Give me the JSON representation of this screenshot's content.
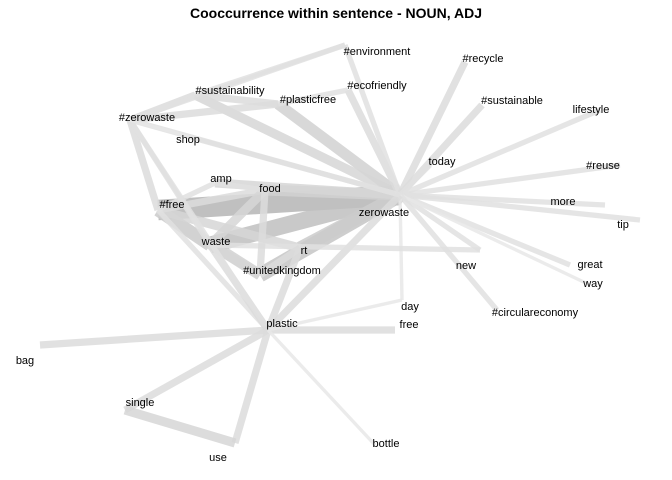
{
  "title": "Cooccurrence within sentence - NOUN, ADJ",
  "nodes": [
    {
      "id": "zerowaste",
      "label": "zerowaste"
    },
    {
      "id": "#environment",
      "label": "#environment"
    },
    {
      "id": "#recycle",
      "label": "#recycle"
    },
    {
      "id": "#sustainability",
      "label": "#sustainability"
    },
    {
      "id": "#ecofriendly",
      "label": "#ecofriendly"
    },
    {
      "id": "#plasticfree",
      "label": "#plasticfree"
    },
    {
      "id": "#sustainable",
      "label": "#sustainable"
    },
    {
      "id": "lifestyle",
      "label": "lifestyle"
    },
    {
      "id": "#zerowaste",
      "label": "#zerowaste"
    },
    {
      "id": "shop",
      "label": "shop"
    },
    {
      "id": "today",
      "label": "today"
    },
    {
      "id": "#reuse",
      "label": "#reuse"
    },
    {
      "id": "amp",
      "label": "amp"
    },
    {
      "id": "food",
      "label": "food"
    },
    {
      "id": "#free",
      "label": "#free"
    },
    {
      "id": "more",
      "label": "more"
    },
    {
      "id": "tip",
      "label": "tip"
    },
    {
      "id": "waste",
      "label": "waste"
    },
    {
      "id": "rt",
      "label": "rt"
    },
    {
      "id": "#unitedkingdom",
      "label": "#unitedkingdom"
    },
    {
      "id": "new",
      "label": "new"
    },
    {
      "id": "great",
      "label": "great"
    },
    {
      "id": "way",
      "label": "way"
    },
    {
      "id": "day",
      "label": "day"
    },
    {
      "id": "#circulareconomy",
      "label": "#circulareconomy"
    },
    {
      "id": "plastic",
      "label": "plastic"
    },
    {
      "id": "free",
      "label": "free"
    },
    {
      "id": "bag",
      "label": "bag"
    },
    {
      "id": "single",
      "label": "single"
    },
    {
      "id": "bottle",
      "label": "bottle"
    },
    {
      "id": "use",
      "label": "use"
    }
  ],
  "edges": [
    {
      "source": "zerowaste",
      "target": "#free",
      "weight": 10
    },
    {
      "source": "zerowaste",
      "target": "waste",
      "weight": 8
    },
    {
      "source": "zerowaste",
      "target": "#unitedkingdom",
      "weight": 7
    },
    {
      "source": "zerowaste",
      "target": "rt",
      "weight": 6
    },
    {
      "source": "zerowaste",
      "target": "food",
      "weight": 5
    },
    {
      "source": "zerowaste",
      "target": "amp",
      "weight": 4
    },
    {
      "source": "zerowaste",
      "target": "#plasticfree",
      "weight": 5
    },
    {
      "source": "zerowaste",
      "target": "#sustainability",
      "weight": 4
    },
    {
      "source": "zerowaste",
      "target": "#ecofriendly",
      "weight": 3
    },
    {
      "source": "zerowaste",
      "target": "#environment",
      "weight": 2
    },
    {
      "source": "zerowaste",
      "target": "#recycle",
      "weight": 3
    },
    {
      "source": "zerowaste",
      "target": "#sustainable",
      "weight": 3
    },
    {
      "source": "zerowaste",
      "target": "lifestyle",
      "weight": 2
    },
    {
      "source": "zerowaste",
      "target": "#reuse",
      "weight": 2
    },
    {
      "source": "zerowaste",
      "target": "more",
      "weight": 2
    },
    {
      "source": "zerowaste",
      "target": "tip",
      "weight": 2
    },
    {
      "source": "zerowaste",
      "target": "today",
      "weight": 2
    },
    {
      "source": "zerowaste",
      "target": "new",
      "weight": 2
    },
    {
      "source": "zerowaste",
      "target": "great",
      "weight": 2
    },
    {
      "source": "zerowaste",
      "target": "way",
      "weight": 1
    },
    {
      "source": "zerowaste",
      "target": "#circulareconomy",
      "weight": 2
    },
    {
      "source": "zerowaste",
      "target": "day",
      "weight": 1
    },
    {
      "source": "zerowaste",
      "target": "shop",
      "weight": 2
    },
    {
      "source": "zerowaste",
      "target": "plastic",
      "weight": 3
    },
    {
      "source": "zerowaste",
      "target": "#zerowaste",
      "weight": 2
    },
    {
      "source": "#free",
      "target": "waste",
      "weight": 6
    },
    {
      "source": "#free",
      "target": "#unitedkingdom",
      "weight": 5
    },
    {
      "source": "#free",
      "target": "rt",
      "weight": 4
    },
    {
      "source": "#free",
      "target": "food",
      "weight": 3
    },
    {
      "source": "#free",
      "target": "#zerowaste",
      "weight": 3
    },
    {
      "source": "#free",
      "target": "plastic",
      "weight": 2
    },
    {
      "source": "#free",
      "target": "amp",
      "weight": 2
    },
    {
      "source": "waste",
      "target": "food",
      "weight": 4
    },
    {
      "source": "waste",
      "target": "#unitedkingdom",
      "weight": 4
    },
    {
      "source": "waste",
      "target": "new",
      "weight": 2
    },
    {
      "source": "waste",
      "target": "plastic",
      "weight": 3
    },
    {
      "source": "food",
      "target": "#unitedkingdom",
      "weight": 3
    },
    {
      "source": "food",
      "target": "amp",
      "weight": 2
    },
    {
      "source": "rt",
      "target": "#unitedkingdom",
      "weight": 3
    },
    {
      "source": "rt",
      "target": "plastic",
      "weight": 3
    },
    {
      "source": "#zerowaste",
      "target": "#sustainability",
      "weight": 3
    },
    {
      "source": "#zerowaste",
      "target": "#plasticfree",
      "weight": 3
    },
    {
      "source": "#zerowaste",
      "target": "#environment",
      "weight": 2
    },
    {
      "source": "#zerowaste",
      "target": "waste",
      "weight": 2
    },
    {
      "source": "#zerowaste",
      "target": "plastic",
      "weight": 2
    },
    {
      "source": "#zerowaste",
      "target": "shop",
      "weight": 1
    },
    {
      "source": "#sustainability",
      "target": "#plasticfree",
      "weight": 3
    },
    {
      "source": "#sustainability",
      "target": "#environment",
      "weight": 2
    },
    {
      "source": "#plasticfree",
      "target": "#ecofriendly",
      "weight": 2
    },
    {
      "source": "plastic",
      "target": "free",
      "weight": 3
    },
    {
      "source": "plastic",
      "target": "bag",
      "weight": 3
    },
    {
      "source": "plastic",
      "target": "single",
      "weight": 3
    },
    {
      "source": "plastic",
      "target": "use",
      "weight": 3
    },
    {
      "source": "plastic",
      "target": "bottle",
      "weight": 1
    },
    {
      "source": "plastic",
      "target": "day",
      "weight": 1
    },
    {
      "source": "single",
      "target": "use",
      "weight": 4
    }
  ]
}
